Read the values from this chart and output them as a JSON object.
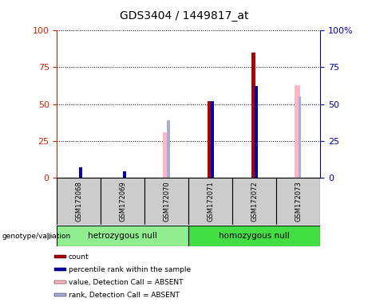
{
  "title": "GDS3404 / 1449817_at",
  "samples": [
    "GSM172068",
    "GSM172069",
    "GSM172070",
    "GSM172071",
    "GSM172072",
    "GSM172073"
  ],
  "genotype_groups": [
    {
      "label": "hetrozygous null",
      "color": "#90ee90",
      "indices": [
        0,
        1,
        2
      ]
    },
    {
      "label": "homozygous null",
      "color": "#44dd44",
      "indices": [
        3,
        4,
        5
      ]
    }
  ],
  "count": [
    0,
    0,
    0,
    52,
    85,
    0
  ],
  "percentile_rank": [
    7,
    4,
    0,
    52,
    62,
    0
  ],
  "value_absent": [
    0,
    0,
    31,
    0,
    0,
    63
  ],
  "rank_absent": [
    0,
    0,
    39,
    0,
    0,
    55
  ],
  "ylim": [
    0,
    100
  ],
  "left_axis_color": "#cc2200",
  "right_axis_color": "#0000bb",
  "count_color": "#aa0000",
  "rank_color": "#0000aa",
  "value_absent_color": "#ffb6c1",
  "rank_absent_color": "#aaaadd",
  "bg_color": "#ffffff"
}
